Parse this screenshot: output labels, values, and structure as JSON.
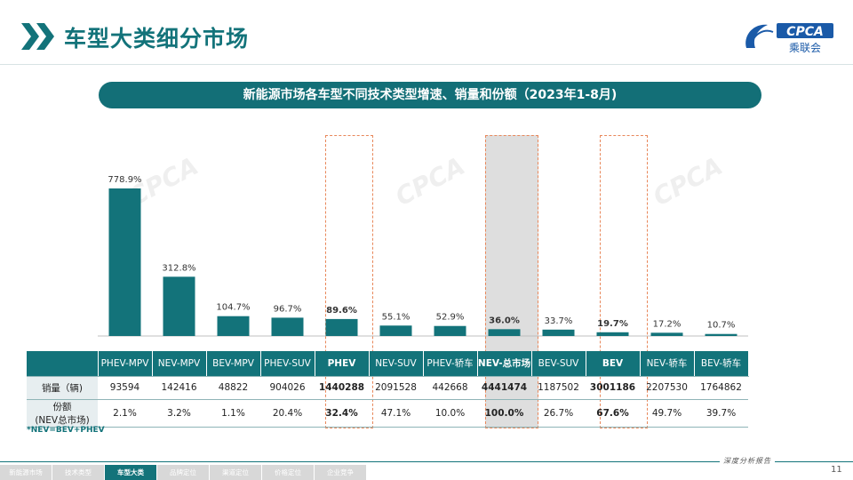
{
  "page_title": "车型大类细分市场",
  "logo": {
    "text": "CPCA",
    "subtext": "乘联会",
    "badge": "CPCA"
  },
  "watermark_text": "CPCA",
  "banner_title": "新能源市场各车型不同技术类型增速、销量和份额（2023年1-8月)",
  "chart_data": {
    "type": "bar",
    "title": "新能源市场各车型不同技术类型增速、销量和份额（2023年1-8月)",
    "categories": [
      "PHEV-MPV",
      "NEV-MPV",
      "BEV-MPV",
      "PHEV-SUV",
      "PHEV",
      "NEV-SUV",
      "PHEV-轿车",
      "NEV-总市场",
      "BEV-SUV",
      "BEV",
      "NEV-轿车",
      "BEV-轿车"
    ],
    "values": [
      778.9,
      312.8,
      104.7,
      96.7,
      89.6,
      55.1,
      52.9,
      36.0,
      33.7,
      19.7,
      17.2,
      10.7
    ],
    "value_labels": [
      "778.9%",
      "312.8%",
      "104.7%",
      "96.7%",
      "89.6%",
      "55.1%",
      "52.9%",
      "36.0%",
      "33.7%",
      "19.7%",
      "17.2%",
      "10.7%"
    ],
    "bold_categories": [
      "PHEV",
      "NEV-总市场",
      "BEV"
    ],
    "highlighted_categories": [
      "PHEV",
      "NEV-总市场",
      "BEV"
    ],
    "shaded_category": "NEV-总市场",
    "bar_color": "#13737a",
    "ylim": [
      0,
      800
    ],
    "grid": false,
    "xlabel": "",
    "ylabel": ""
  },
  "table": {
    "rows": [
      {
        "label": "销量（辆)",
        "values": [
          "93594",
          "142416",
          "48822",
          "904026",
          "1440288",
          "2091528",
          "442668",
          "4441474",
          "1187502",
          "3001186",
          "2207530",
          "1764862"
        ]
      },
      {
        "label_line1": "份额",
        "label_line2": "(NEV总市场)",
        "values": [
          "2.1%",
          "3.2%",
          "1.1%",
          "20.4%",
          "32.4%",
          "47.1%",
          "10.0%",
          "100.0%",
          "26.7%",
          "67.6%",
          "49.7%",
          "39.7%"
        ]
      }
    ]
  },
  "footnote": "*NEV=BEV+PHEV",
  "footer": {
    "tagline": "深度分析报告",
    "page_number": "11",
    "nav_tabs": [
      "新能源市场",
      "技术类型",
      "车型大类",
      "品牌定位",
      "渠道定位",
      "价格定位",
      "企业竞争"
    ],
    "active_tab": "车型大类"
  },
  "colors": {
    "primary": "#13737a",
    "accent_dash": "#e8875a"
  }
}
